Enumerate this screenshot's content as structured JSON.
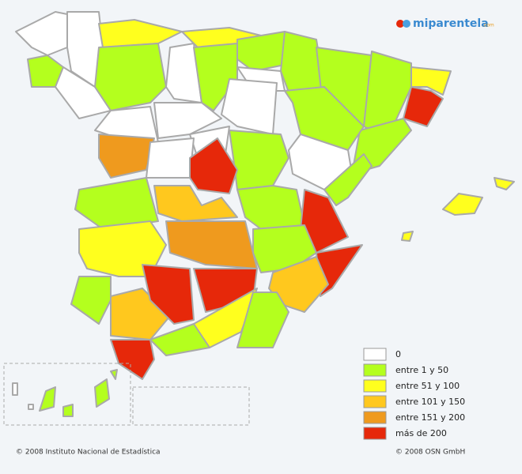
{
  "logo": {
    "name": "miparentela",
    "suffix": ".com"
  },
  "legend": {
    "items": [
      {
        "label": "0",
        "color": "#ffffff"
      },
      {
        "label": "entre 1 y 50",
        "color": "#b4ff1e"
      },
      {
        "label": "entre 51 y 100",
        "color": "#ffff1e"
      },
      {
        "label": "entre 101 y 150",
        "color": "#ffc81e"
      },
      {
        "label": "entre 151 y 200",
        "color": "#ef9a1e"
      },
      {
        "label": "más de 200",
        "color": "#e6280a"
      }
    ]
  },
  "footer": {
    "left": "© 2008 Instituto Nacional de Estadística",
    "right": "© 2008 OSN GmbH"
  }
}
